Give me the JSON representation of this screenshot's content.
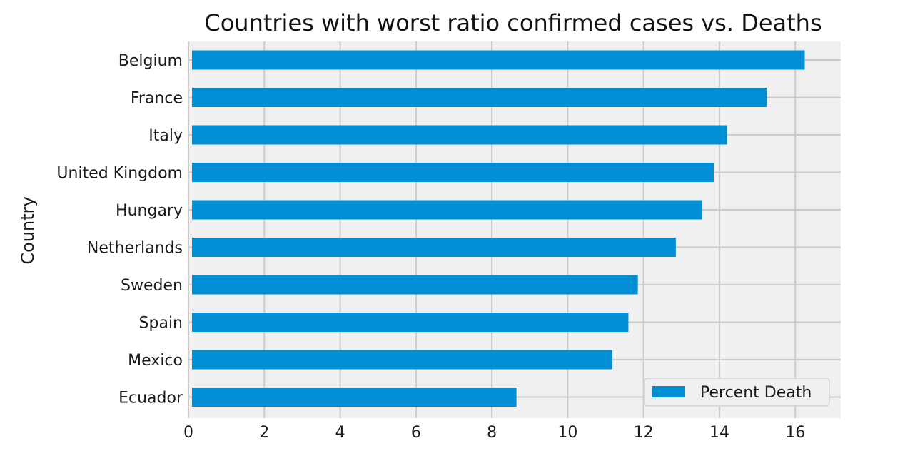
{
  "chart_data": {
    "type": "bar",
    "orientation": "horizontal",
    "title": "Countries with worst ratio confirmed cases vs. Deaths",
    "xlabel": "",
    "ylabel": "Country",
    "categories": [
      "Belgium",
      "France",
      "Italy",
      "United Kingdom",
      "Hungary",
      "Netherlands",
      "Sweden",
      "Spain",
      "Mexico",
      "Ecuador"
    ],
    "series": [
      {
        "name": "Percent Death",
        "color": "#008fd5",
        "values": [
          16.25,
          15.25,
          14.2,
          13.85,
          13.55,
          12.85,
          11.85,
          11.6,
          11.18,
          8.65
        ]
      }
    ],
    "xlim": [
      0,
      17.2
    ],
    "xticks": [
      0,
      2,
      4,
      6,
      8,
      10,
      12,
      14,
      16
    ],
    "grid": true,
    "legend_position": "bottom-right",
    "background_color": "#f0f0f0",
    "grid_color": "#cbcbcb"
  }
}
